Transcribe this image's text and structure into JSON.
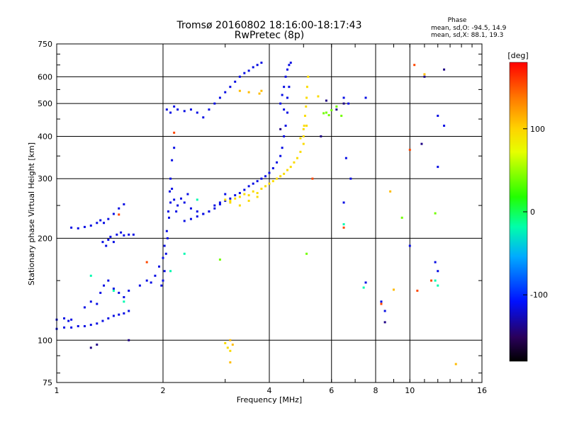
{
  "chart_data": {
    "type": "scatter",
    "title": "Tromsø 20160802 18:16:00-18:17:43",
    "subtitle": "RwPretec (8p)",
    "xlabel": "Frequency [MHz]",
    "ylabel": "Stationary phase Virtual Height [km]",
    "x_scale": "log",
    "y_scale": "log",
    "xlim": [
      1,
      16
    ],
    "ylim": [
      75,
      750
    ],
    "x_ticks": [
      1,
      2,
      4,
      6,
      8,
      10,
      16
    ],
    "y_ticks": [
      75,
      100,
      200,
      300,
      400,
      500,
      600,
      750
    ],
    "grid_x": [
      2,
      4,
      6,
      8,
      10
    ],
    "grid_y": [
      100,
      200,
      300,
      400,
      500,
      600
    ],
    "phase_box": {
      "title": "Phase",
      "line1": "mean, sd,O: -94.5, 14.9",
      "line2": "mean, sd,X:  88.1, 19.3"
    },
    "colorbar": {
      "label": "[deg]",
      "ticks": [
        100,
        0,
        -100
      ],
      "range": [
        -180,
        180
      ]
    },
    "series": [
      {
        "phase_deg": -115,
        "points": [
          [
            1.0,
            108
          ],
          [
            1.05,
            109
          ],
          [
            1.1,
            109
          ],
          [
            1.15,
            110
          ],
          [
            1.2,
            110
          ],
          [
            1.25,
            111
          ],
          [
            1.3,
            112
          ],
          [
            1.35,
            114
          ],
          [
            1.4,
            116
          ],
          [
            1.45,
            118
          ],
          [
            1.5,
            119
          ],
          [
            1.55,
            120
          ],
          [
            1.6,
            122
          ],
          [
            1.0,
            115
          ],
          [
            1.05,
            116
          ],
          [
            1.08,
            114
          ],
          [
            1.1,
            115
          ],
          [
            1.1,
            215
          ],
          [
            1.15,
            214
          ],
          [
            1.2,
            216
          ],
          [
            1.25,
            218
          ],
          [
            1.3,
            222
          ],
          [
            1.33,
            226
          ],
          [
            1.36,
            222
          ],
          [
            1.4,
            228
          ],
          [
            1.45,
            236
          ],
          [
            1.5,
            245
          ],
          [
            1.55,
            252
          ],
          [
            1.35,
            195
          ],
          [
            1.38,
            190
          ],
          [
            1.4,
            198
          ],
          [
            1.42,
            202
          ],
          [
            1.45,
            195
          ],
          [
            1.48,
            205
          ],
          [
            1.52,
            208
          ],
          [
            1.55,
            204
          ],
          [
            1.6,
            205
          ],
          [
            1.65,
            205
          ],
          [
            1.2,
            125
          ],
          [
            1.25,
            130
          ],
          [
            1.3,
            128
          ],
          [
            1.33,
            138
          ],
          [
            1.36,
            145
          ],
          [
            1.4,
            150
          ],
          [
            1.45,
            142
          ],
          [
            1.5,
            138
          ],
          [
            1.55,
            134
          ],
          [
            1.6,
            140
          ],
          [
            1.72,
            145
          ],
          [
            1.8,
            150
          ],
          [
            1.85,
            148
          ],
          [
            1.9,
            155
          ],
          [
            1.95,
            165
          ],
          [
            2.0,
            175
          ],
          [
            2.02,
            190
          ],
          [
            2.05,
            210
          ],
          [
            2.07,
            240
          ],
          [
            2.09,
            275
          ],
          [
            2.1,
            300
          ],
          [
            2.12,
            340
          ],
          [
            2.15,
            370
          ],
          [
            1.98,
            145
          ],
          [
            2.0,
            150
          ],
          [
            2.02,
            160
          ],
          [
            2.04,
            180
          ],
          [
            2.06,
            200
          ],
          [
            2.08,
            230
          ],
          [
            2.1,
            255
          ],
          [
            2.12,
            280
          ],
          [
            2.15,
            260
          ],
          [
            2.18,
            240
          ],
          [
            2.2,
            250
          ],
          [
            2.25,
            262
          ],
          [
            2.3,
            255
          ],
          [
            2.35,
            270
          ],
          [
            2.4,
            245
          ],
          [
            2.5,
            240
          ],
          [
            2.6,
            236
          ],
          [
            2.7,
            240
          ],
          [
            2.8,
            250
          ],
          [
            2.9,
            255
          ],
          [
            3.0,
            270
          ],
          [
            2.05,
            480
          ],
          [
            2.1,
            470
          ],
          [
            2.15,
            490
          ],
          [
            2.2,
            480
          ],
          [
            2.3,
            475
          ],
          [
            2.4,
            480
          ],
          [
            2.5,
            470
          ],
          [
            2.6,
            455
          ],
          [
            2.7,
            480
          ],
          [
            2.8,
            500
          ],
          [
            2.9,
            520
          ],
          [
            3.0,
            540
          ],
          [
            3.1,
            560
          ],
          [
            3.2,
            580
          ],
          [
            3.3,
            600
          ],
          [
            3.4,
            615
          ],
          [
            3.5,
            625
          ],
          [
            3.6,
            640
          ],
          [
            3.7,
            650
          ],
          [
            3.8,
            660
          ],
          [
            2.3,
            225
          ],
          [
            2.4,
            228
          ],
          [
            2.5,
            232
          ],
          [
            2.6,
            236
          ],
          [
            2.7,
            240
          ],
          [
            2.8,
            245
          ],
          [
            2.9,
            252
          ],
          [
            3.0,
            258
          ],
          [
            3.1,
            262
          ],
          [
            3.2,
            268
          ],
          [
            3.3,
            272
          ],
          [
            3.4,
            278
          ],
          [
            3.5,
            285
          ],
          [
            3.6,
            290
          ],
          [
            3.7,
            295
          ],
          [
            3.8,
            300
          ],
          [
            3.9,
            305
          ],
          [
            4.0,
            312
          ],
          [
            4.1,
            322
          ],
          [
            4.2,
            335
          ],
          [
            4.3,
            350
          ],
          [
            4.35,
            370
          ],
          [
            4.4,
            400
          ],
          [
            4.45,
            430
          ],
          [
            4.5,
            470
          ],
          [
            4.3,
            500
          ],
          [
            4.35,
            530
          ],
          [
            4.4,
            560
          ],
          [
            4.45,
            600
          ],
          [
            4.5,
            630
          ],
          [
            4.55,
            650
          ],
          [
            4.6,
            660
          ],
          [
            4.4,
            480
          ],
          [
            4.5,
            520
          ],
          [
            4.55,
            560
          ],
          [
            6.6,
            345
          ],
          [
            6.8,
            300
          ],
          [
            6.5,
            520
          ],
          [
            6.7,
            500
          ],
          [
            7.5,
            520
          ],
          [
            10.0,
            190
          ],
          [
            12.0,
            460
          ],
          [
            12.5,
            430
          ],
          [
            12.0,
            325
          ],
          [
            12.0,
            160
          ],
          [
            11.8,
            170
          ],
          [
            8.5,
            122
          ],
          [
            8.3,
            130
          ],
          [
            7.5,
            148
          ],
          [
            6.5,
            255
          ]
        ]
      },
      {
        "phase_deg": 95,
        "points": [
          [
            3.0,
            260
          ],
          [
            3.1,
            258
          ],
          [
            3.2,
            262
          ],
          [
            3.3,
            265
          ],
          [
            3.4,
            270
          ],
          [
            3.5,
            268
          ],
          [
            3.6,
            275
          ],
          [
            3.7,
            272
          ],
          [
            3.8,
            280
          ],
          [
            3.9,
            285
          ],
          [
            4.0,
            290
          ],
          [
            4.1,
            295
          ],
          [
            4.2,
            300
          ],
          [
            4.3,
            305
          ],
          [
            4.4,
            310
          ],
          [
            4.5,
            318
          ],
          [
            4.6,
            325
          ],
          [
            4.7,
            335
          ],
          [
            4.8,
            345
          ],
          [
            4.9,
            360
          ],
          [
            5.0,
            380
          ],
          [
            5.0,
            400
          ],
          [
            5.02,
            430
          ],
          [
            5.05,
            460
          ],
          [
            5.08,
            490
          ],
          [
            5.1,
            520
          ],
          [
            5.12,
            560
          ],
          [
            5.15,
            600
          ],
          [
            3.1,
            255
          ],
          [
            3.3,
            250
          ],
          [
            3.5,
            258
          ],
          [
            3.7,
            265
          ],
          [
            4.9,
            395
          ],
          [
            5.0,
            420
          ],
          [
            3.0,
            98
          ],
          [
            3.05,
            95
          ],
          [
            3.1,
            93
          ],
          [
            5.1,
            430
          ],
          [
            5.5,
            525
          ]
        ]
      },
      {
        "phase_deg": 40,
        "points": [
          [
            2.9,
            173
          ],
          [
            5.7,
            468
          ],
          [
            5.8,
            470
          ],
          [
            5.9,
            462
          ],
          [
            6.0,
            478
          ],
          [
            6.2,
            490
          ],
          [
            6.4,
            460
          ],
          [
            9.5,
            230
          ],
          [
            11.8,
            237
          ],
          [
            5.1,
            180
          ]
        ]
      },
      {
        "phase_deg": -20,
        "points": [
          [
            1.25,
            155
          ],
          [
            1.45,
            140
          ],
          [
            1.55,
            130
          ],
          [
            2.1,
            160
          ],
          [
            2.3,
            180
          ],
          [
            2.5,
            260
          ],
          [
            6.5,
            220
          ],
          [
            11.8,
            150
          ],
          [
            12.0,
            145
          ],
          [
            7.4,
            143
          ]
        ]
      },
      {
        "phase_deg": 155,
        "points": [
          [
            1.5,
            235
          ],
          [
            1.8,
            170
          ],
          [
            2.15,
            410
          ],
          [
            5.3,
            300
          ],
          [
            6.5,
            215
          ],
          [
            8.3,
            128
          ],
          [
            10.5,
            140
          ],
          [
            10.3,
            650
          ],
          [
            11.5,
            150
          ],
          [
            10.0,
            365
          ]
        ]
      },
      {
        "phase_deg": -140,
        "points": [
          [
            1.25,
            95
          ],
          [
            1.3,
            97
          ],
          [
            1.6,
            100
          ],
          [
            4.3,
            420
          ],
          [
            5.6,
            400
          ],
          [
            5.8,
            510
          ],
          [
            6.2,
            480
          ],
          [
            6.5,
            500
          ],
          [
            12.5,
            630
          ],
          [
            11.0,
            600
          ],
          [
            8.5,
            113
          ],
          [
            10.8,
            380
          ]
        ]
      },
      {
        "phase_deg": 110,
        "points": [
          [
            3.1,
            100
          ],
          [
            3.15,
            97
          ],
          [
            3.1,
            86
          ],
          [
            3.8,
            545
          ],
          [
            3.75,
            535
          ],
          [
            3.5,
            540
          ],
          [
            3.3,
            545
          ],
          [
            11.0,
            610
          ],
          [
            13.5,
            85
          ],
          [
            8.8,
            275
          ],
          [
            9.0,
            141
          ]
        ]
      }
    ]
  }
}
